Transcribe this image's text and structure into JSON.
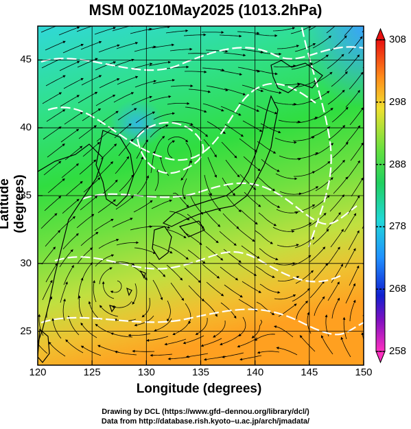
{
  "title": "MSM 00Z10May2025 (1013.2hPa)",
  "chart_data": {
    "type": "map",
    "xlabel": "Longitude (degrees)",
    "ylabel": "Latitude  (degrees)",
    "xlim": [
      120,
      150
    ],
    "ylim": [
      22.5,
      47.5
    ],
    "x_ticks": [
      "120",
      "125",
      "130",
      "135",
      "140",
      "145",
      "150"
    ],
    "y_ticks": [
      "25",
      "30",
      "35",
      "40",
      "45"
    ],
    "colorbar": {
      "range": [
        258,
        308
      ],
      "ticks": [
        "308",
        "298",
        "288",
        "278",
        "268",
        "258"
      ]
    },
    "grid": true,
    "features": [
      "temperature-shading",
      "streamlines",
      "isotherm-contours",
      "coastlines"
    ]
  },
  "credits": {
    "line1": "Drawing by DCL (https://www.gfd–dennou.org/library/dcl/)",
    "line2": "Data from http://database.rish.kyoto–u.ac.jp/arch/jmadata/"
  },
  "colors": {
    "cold": "#00aaff",
    "cool": "#00e0a0",
    "mild": "#40dd40",
    "warm": "#c8e040",
    "hot": "#ffa020"
  }
}
